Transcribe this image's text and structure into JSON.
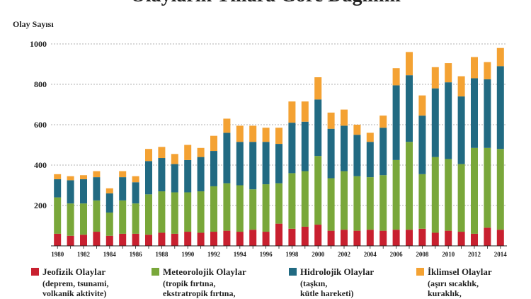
{
  "chart_data": {
    "type": "stacked_bar",
    "title": "Olayların Yıllara Göre Dağılımı",
    "y_label": "Olay Sayısı",
    "categories": [
      "1980",
      null,
      "1982",
      null,
      "1984",
      null,
      "1986",
      null,
      "1988",
      null,
      "1990",
      null,
      "1992",
      null,
      "1994",
      null,
      "1996",
      null,
      "1998",
      null,
      "2000",
      null,
      "2002",
      null,
      "2004",
      null,
      "2006",
      null,
      "2008",
      null,
      "2010",
      null,
      "2012",
      null,
      "2014"
    ],
    "series": [
      {
        "name": "Jeofizik Olaylar",
        "description": [
          "(deprem, tsunami,",
          "volkanik aktivite)"
        ],
        "color": "#c8202f",
        "values": [
          60,
          50,
          55,
          70,
          50,
          60,
          60,
          55,
          65,
          60,
          70,
          65,
          70,
          75,
          70,
          80,
          70,
          110,
          85,
          95,
          105,
          75,
          80,
          75,
          80,
          75,
          80,
          80,
          85,
          65,
          75,
          70,
          60,
          90,
          80
        ]
      },
      {
        "name": "Meteorolojik Olaylar",
        "description": [
          "(tropik fırtına,",
          "ekstratropik fırtına,"
        ],
        "color": "#79a73a",
        "values": [
          180,
          160,
          155,
          155,
          115,
          165,
          150,
          200,
          205,
          205,
          195,
          205,
          225,
          235,
          230,
          200,
          235,
          200,
          275,
          275,
          340,
          260,
          290,
          270,
          260,
          275,
          345,
          435,
          270,
          375,
          355,
          335,
          425,
          395,
          400
        ]
      },
      {
        "name": "Hidrolojik Olaylar",
        "description": [
          "(taşkın,",
          "kütle hareketi)"
        ],
        "color": "#216a82",
        "values": [
          90,
          115,
          120,
          115,
          95,
          115,
          105,
          165,
          165,
          140,
          160,
          170,
          175,
          250,
          215,
          235,
          210,
          195,
          250,
          245,
          280,
          245,
          225,
          205,
          175,
          235,
          370,
          330,
          290,
          340,
          380,
          335,
          345,
          340,
          410
        ]
      },
      {
        "name": "İklimsel Olaylar",
        "description": [
          "(aşırı sıcaklık,",
          "kuraklık,"
        ],
        "color": "#f4a233",
        "values": [
          25,
          20,
          20,
          30,
          25,
          30,
          30,
          60,
          55,
          50,
          75,
          45,
          75,
          70,
          80,
          80,
          70,
          80,
          105,
          100,
          110,
          80,
          80,
          50,
          45,
          60,
          85,
          115,
          100,
          105,
          95,
          100,
          105,
          85,
          90
        ]
      }
    ],
    "ylim": [
      0,
      1000
    ],
    "yticks": [
      200,
      400,
      600,
      800,
      1000
    ],
    "grid": true
  }
}
